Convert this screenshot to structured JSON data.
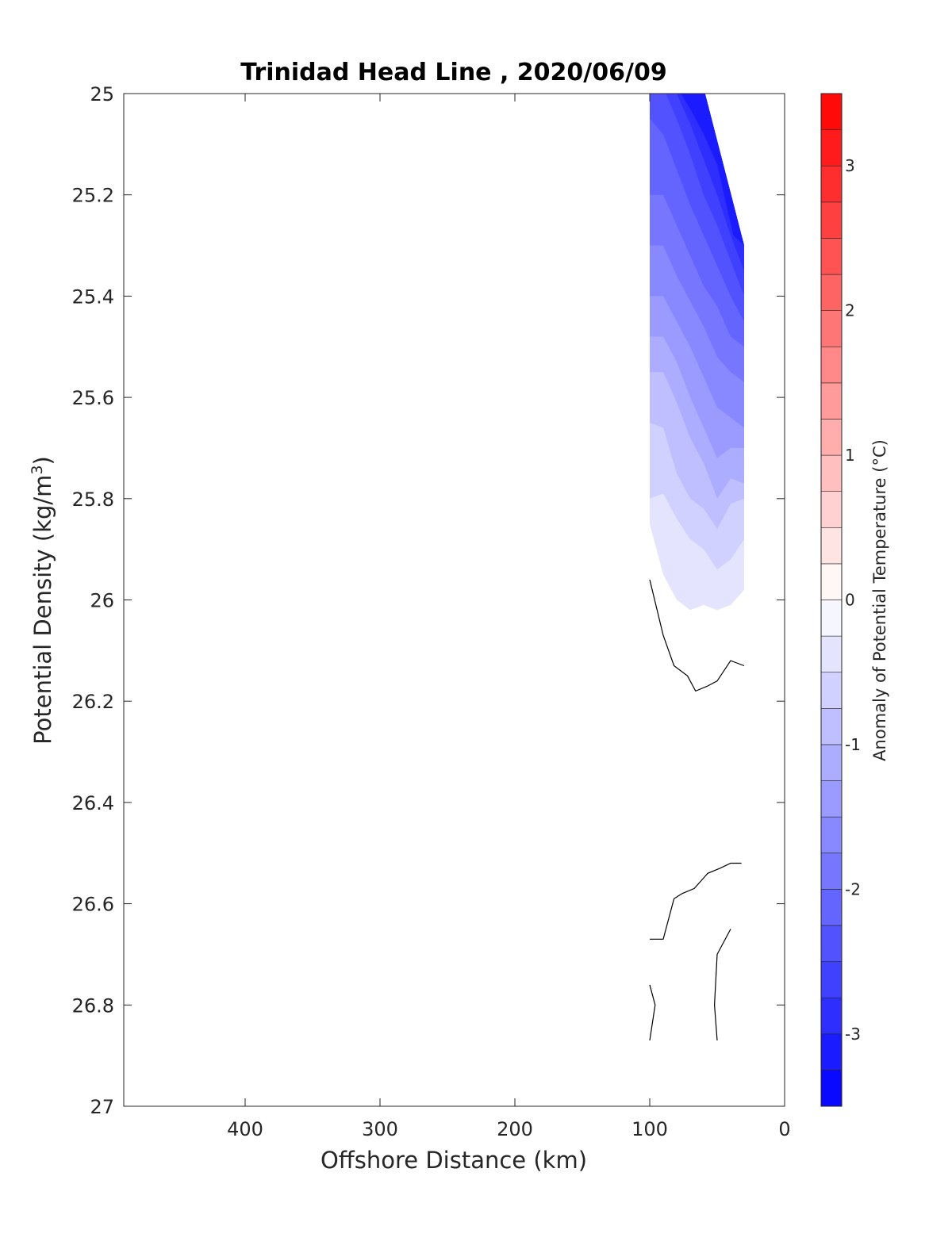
{
  "chart_data": {
    "type": "contour",
    "title": "Trinidad Head Line , 2020/06/09",
    "xlabel": "Offshore Distance (km)",
    "ylabel_main": "Potential Density (kg/m",
    "ylabel_sup": "3",
    "ylabel_close": ")",
    "xlim": [
      490,
      0
    ],
    "ylim": [
      25,
      27
    ],
    "xticks": [
      400,
      300,
      200,
      100,
      0
    ],
    "yticks": [
      25,
      25.2,
      25.4,
      25.6,
      25.8,
      26,
      26.2,
      26.4,
      26.6,
      26.8,
      27
    ],
    "y_reversed": true,
    "x_reversed": true,
    "colorbar": {
      "label": "Anomaly of Potential Temperature (°C)",
      "range": [
        -3.5,
        3.5
      ],
      "step": 0.25,
      "ticks": [
        -3,
        -2,
        -1,
        0,
        1,
        2,
        3
      ],
      "cmap": "blue-white-red"
    },
    "filled_contours": [
      {
        "level": -0.25,
        "points": [
          [
            100,
            25
          ],
          [
            59,
            25
          ],
          [
            30,
            25.3
          ],
          [
            30,
            25.98
          ],
          [
            40,
            26.01
          ],
          [
            50,
            26.02
          ],
          [
            60,
            26.01
          ],
          [
            70,
            26.02
          ],
          [
            80,
            26
          ],
          [
            90,
            25.95
          ],
          [
            100,
            25.85
          ]
        ]
      },
      {
        "level": -0.5,
        "points": [
          [
            100,
            25
          ],
          [
            59,
            25
          ],
          [
            30,
            25.3
          ],
          [
            30,
            25.88
          ],
          [
            40,
            25.92
          ],
          [
            50,
            25.94
          ],
          [
            60,
            25.9
          ],
          [
            70,
            25.88
          ],
          [
            80,
            25.84
          ],
          [
            90,
            25.79
          ],
          [
            100,
            25.8
          ]
        ]
      },
      {
        "level": -0.75,
        "points": [
          [
            100,
            25
          ],
          [
            59,
            25
          ],
          [
            30,
            25.3
          ],
          [
            30,
            25.8
          ],
          [
            40,
            25.81
          ],
          [
            50,
            25.86
          ],
          [
            60,
            25.82
          ],
          [
            70,
            25.8
          ],
          [
            80,
            25.75
          ],
          [
            90,
            25.66
          ],
          [
            100,
            25.65
          ]
        ]
      },
      {
        "level": -1.0,
        "points": [
          [
            100,
            25
          ],
          [
            59,
            25
          ],
          [
            30,
            25.3
          ],
          [
            30,
            25.77
          ],
          [
            40,
            25.76
          ],
          [
            50,
            25.8
          ],
          [
            60,
            25.73
          ],
          [
            70,
            25.68
          ],
          [
            80,
            25.61
          ],
          [
            90,
            25.55
          ],
          [
            100,
            25.55
          ]
        ]
      },
      {
        "level": -1.25,
        "points": [
          [
            100,
            25
          ],
          [
            59,
            25
          ],
          [
            30,
            25.3
          ],
          [
            30,
            25.7
          ],
          [
            40,
            25.7
          ],
          [
            50,
            25.72
          ],
          [
            60,
            25.66
          ],
          [
            70,
            25.6
          ],
          [
            80,
            25.53
          ],
          [
            90,
            25.48
          ],
          [
            100,
            25.48
          ]
        ]
      },
      {
        "level": -1.5,
        "points": [
          [
            100,
            25
          ],
          [
            59,
            25
          ],
          [
            30,
            25.3
          ],
          [
            30,
            25.66
          ],
          [
            40,
            25.64
          ],
          [
            50,
            25.62
          ],
          [
            60,
            25.56
          ],
          [
            70,
            25.5
          ],
          [
            80,
            25.45
          ],
          [
            90,
            25.4
          ],
          [
            100,
            25.4
          ]
        ]
      },
      {
        "level": -1.75,
        "points": [
          [
            100,
            25
          ],
          [
            59,
            25
          ],
          [
            30,
            25.3
          ],
          [
            30,
            25.57
          ],
          [
            40,
            25.55
          ],
          [
            50,
            25.52
          ],
          [
            60,
            25.46
          ],
          [
            70,
            25.41
          ],
          [
            80,
            25.36
          ],
          [
            90,
            25.3
          ],
          [
            100,
            25.3
          ]
        ]
      },
      {
        "level": -2.0,
        "points": [
          [
            100,
            25
          ],
          [
            59,
            25
          ],
          [
            30,
            25.3
          ],
          [
            30,
            25.5
          ],
          [
            40,
            25.48
          ],
          [
            50,
            25.42
          ],
          [
            60,
            25.38
          ],
          [
            70,
            25.32
          ],
          [
            80,
            25.26
          ],
          [
            90,
            25.2
          ],
          [
            100,
            25.2
          ]
        ]
      },
      {
        "level": -2.25,
        "points": [
          [
            100,
            25
          ],
          [
            59,
            25
          ],
          [
            30,
            25.3
          ],
          [
            30,
            25.45
          ],
          [
            40,
            25.4
          ],
          [
            50,
            25.34
          ],
          [
            60,
            25.28
          ],
          [
            70,
            25.22
          ],
          [
            80,
            25.15
          ],
          [
            90,
            25.08
          ],
          [
            100,
            25.05
          ]
        ]
      },
      {
        "level": -2.5,
        "points": [
          [
            93,
            25
          ],
          [
            59,
            25
          ],
          [
            30,
            25.3
          ],
          [
            30,
            25.4
          ],
          [
            40,
            25.33
          ],
          [
            50,
            25.26
          ],
          [
            60,
            25.2
          ],
          [
            70,
            25.12
          ],
          [
            80,
            25.05
          ],
          [
            88,
            25
          ]
        ]
      },
      {
        "level": -2.75,
        "points": [
          [
            86,
            25
          ],
          [
            59,
            25
          ],
          [
            30,
            25.3
          ],
          [
            30,
            25.35
          ],
          [
            40,
            25.28
          ],
          [
            50,
            25.2
          ],
          [
            60,
            25.13
          ],
          [
            70,
            25.06
          ],
          [
            80,
            25
          ]
        ]
      },
      {
        "level": -3.0,
        "points": [
          [
            80,
            25
          ],
          [
            59,
            25
          ],
          [
            30,
            25.3
          ],
          [
            38,
            25.28
          ],
          [
            50,
            25.14
          ],
          [
            60,
            25.08
          ],
          [
            70,
            25.03
          ],
          [
            77,
            25
          ]
        ]
      }
    ],
    "contour_lines": [
      {
        "level": 0,
        "points": [
          [
            100,
            25.96
          ],
          [
            90,
            26.07
          ],
          [
            82,
            26.13
          ],
          [
            72,
            26.15
          ],
          [
            66,
            26.18
          ],
          [
            57,
            26.17
          ],
          [
            50,
            26.16
          ],
          [
            40,
            26.12
          ],
          [
            30,
            26.13
          ]
        ]
      },
      {
        "level": 0,
        "points": [
          [
            100,
            26.67
          ],
          [
            90,
            26.67
          ],
          [
            82,
            26.59
          ],
          [
            76,
            26.58
          ],
          [
            67,
            26.57
          ],
          [
            57,
            26.54
          ],
          [
            48,
            26.53
          ],
          [
            40,
            26.52
          ],
          [
            32,
            26.52
          ]
        ]
      },
      {
        "level": 0,
        "points": [
          [
            50,
            26.87
          ],
          [
            52,
            26.8
          ],
          [
            50,
            26.7
          ],
          [
            40,
            26.65
          ]
        ]
      },
      {
        "level": 0,
        "points": [
          [
            100,
            26.76
          ],
          [
            96,
            26.8
          ],
          [
            100,
            26.87
          ]
        ]
      }
    ]
  }
}
